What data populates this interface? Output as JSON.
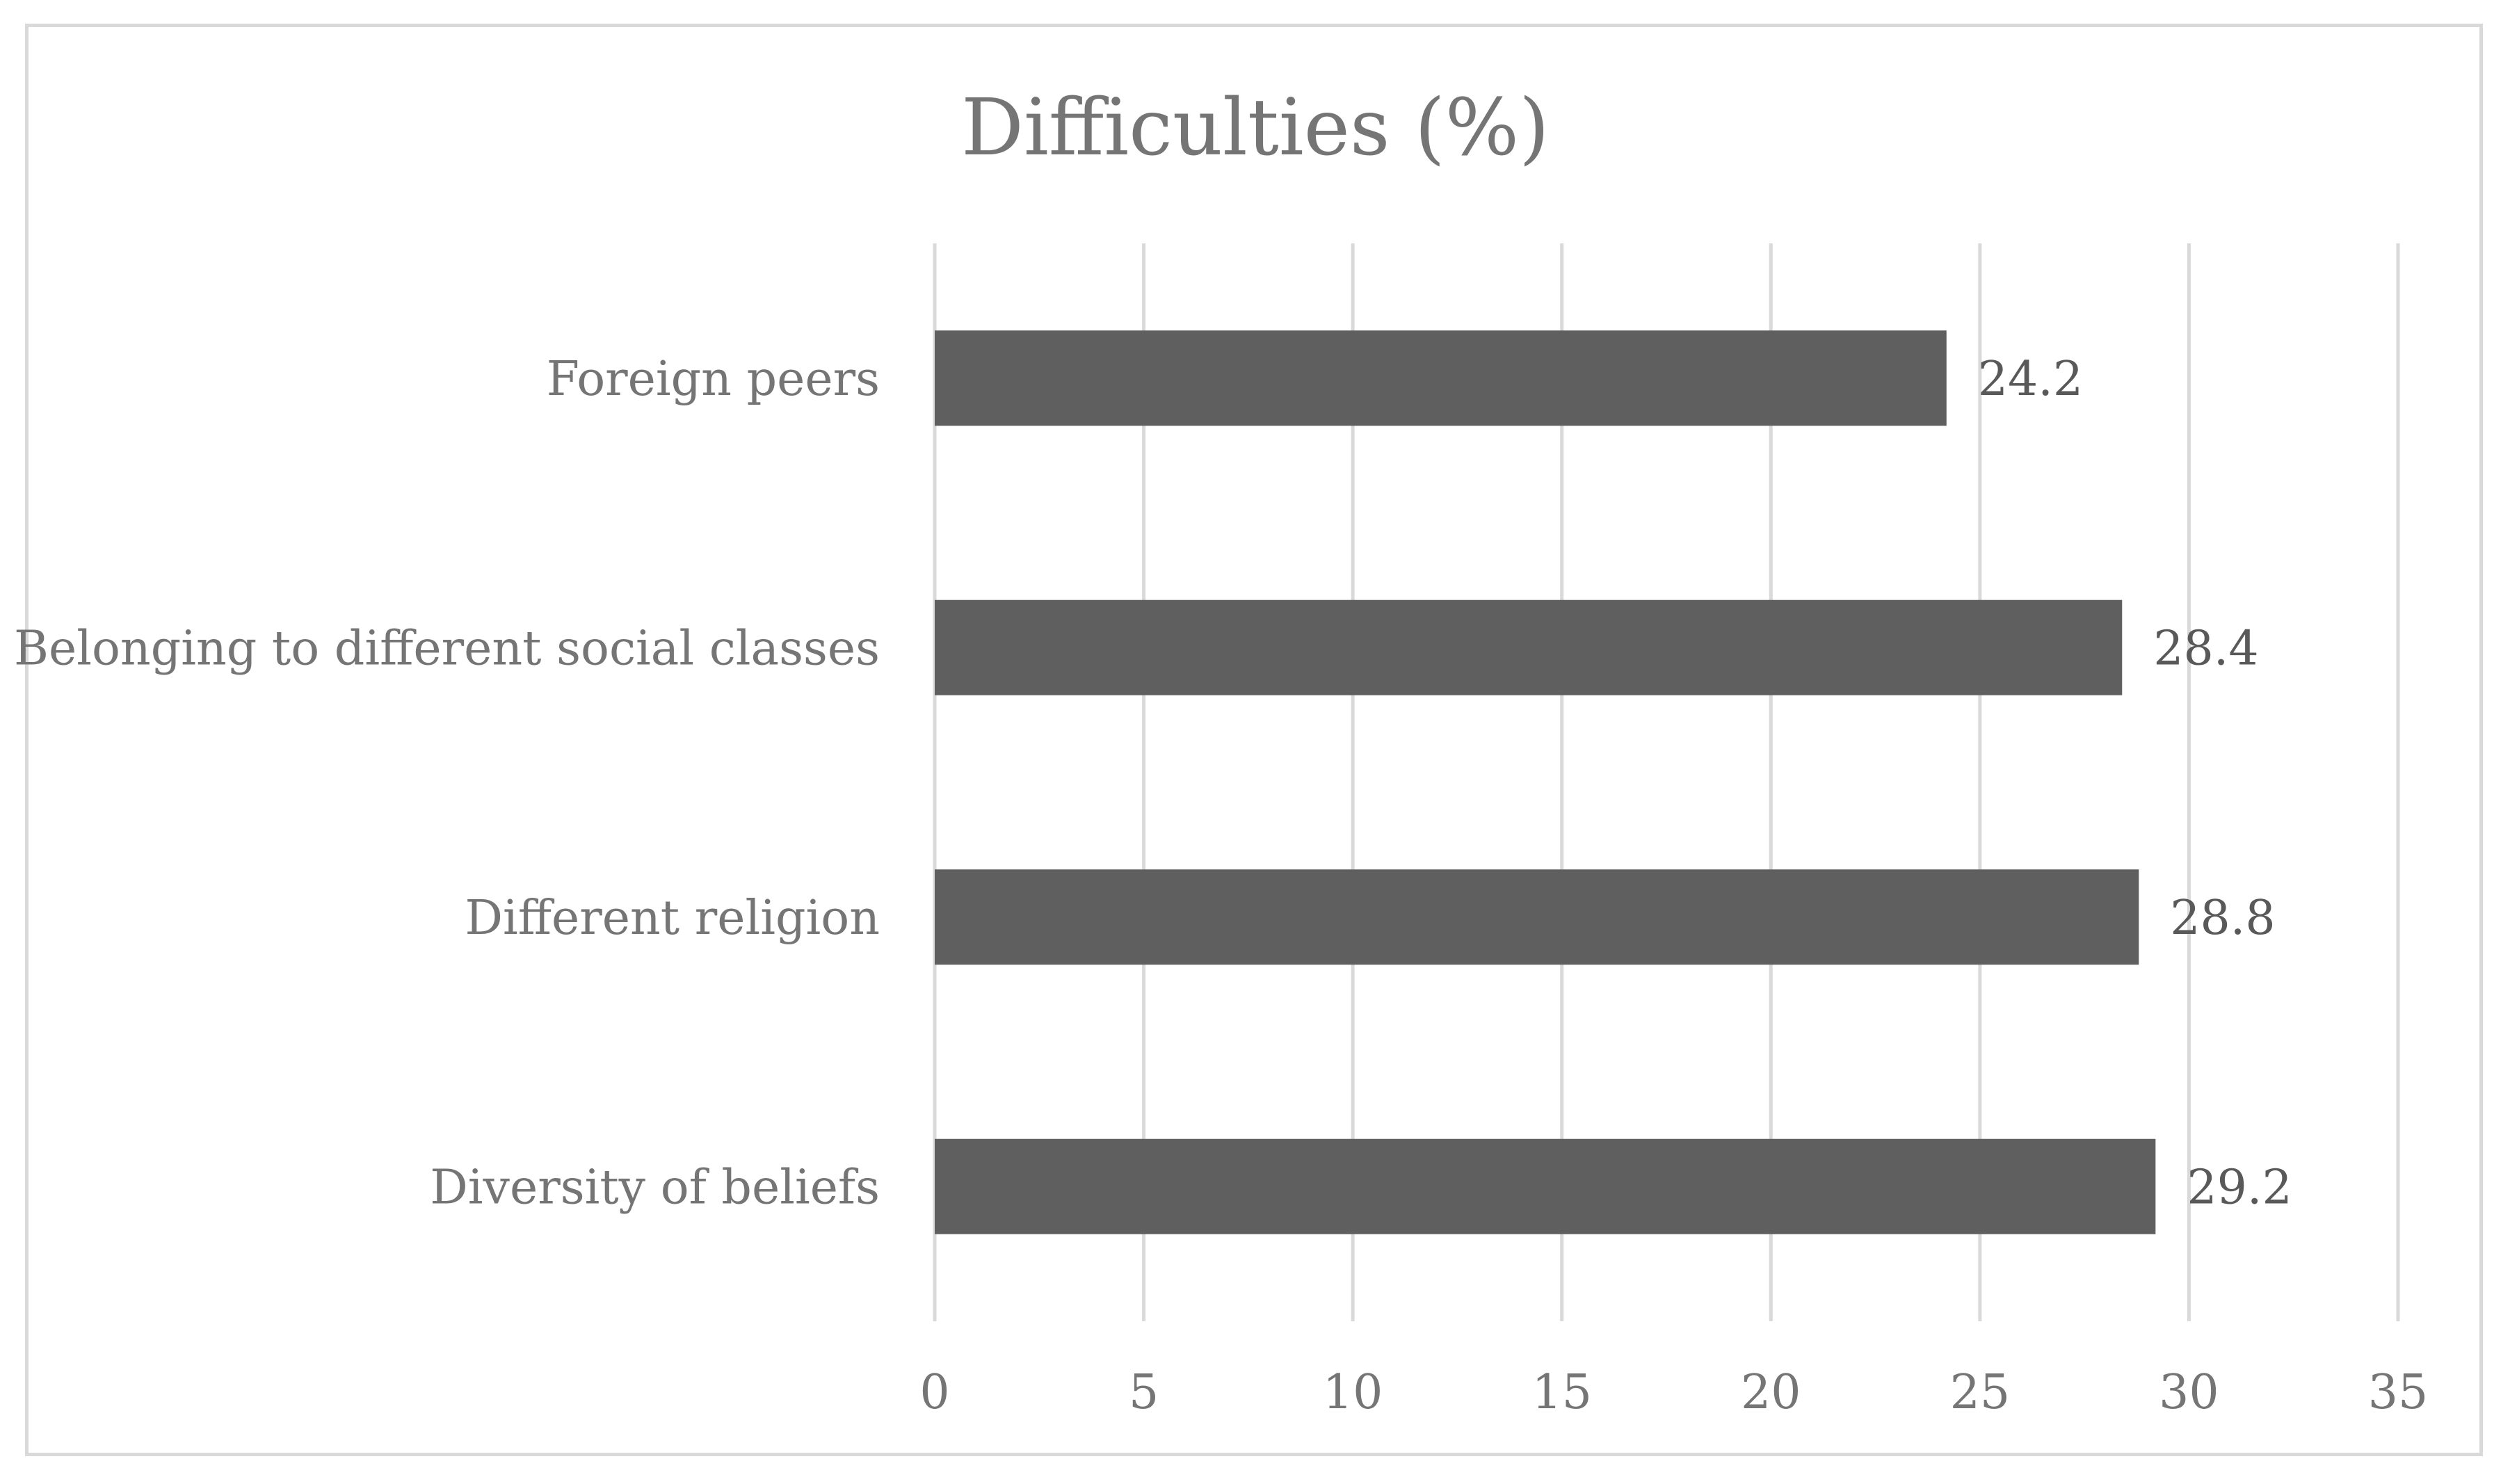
{
  "chart_data": {
    "type": "bar",
    "orientation": "horizontal",
    "title": "Difficulties (%)",
    "xlabel": "",
    "ylabel": "",
    "categories": [
      "Foreign peers",
      "Belonging to different social classes",
      "Different religion",
      "Diversity of beliefs"
    ],
    "values": [
      24.2,
      28.4,
      28.8,
      29.2
    ],
    "value_labels": [
      "24.2",
      "28.4",
      "28.8",
      "29.2"
    ],
    "xlim": [
      0,
      35
    ],
    "xticks": [
      0,
      5,
      10,
      15,
      20,
      25,
      30,
      35
    ],
    "grid": "vertical",
    "legend": "none",
    "bar_color": "#5f5f5f",
    "grid_color": "#d9d9d9",
    "text_color": "#757575"
  }
}
